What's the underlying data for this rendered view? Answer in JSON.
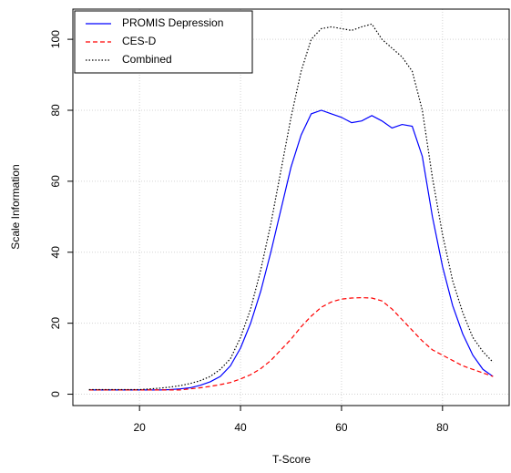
{
  "chart_data": {
    "type": "line",
    "x_label": "T-Score",
    "y_label": "Scale Information",
    "x": [
      10,
      12,
      14,
      16,
      18,
      20,
      22,
      24,
      26,
      28,
      30,
      32,
      34,
      36,
      38,
      40,
      42,
      44,
      46,
      48,
      50,
      52,
      54,
      56,
      58,
      60,
      62,
      64,
      66,
      68,
      70,
      72,
      74,
      76,
      78,
      80,
      82,
      84,
      86,
      88,
      90
    ],
    "series": [
      {
        "name": "PROMIS Depression",
        "color": "#0000ff",
        "dash": "solid",
        "values": [
          1.2,
          1.2,
          1.2,
          1.2,
          1.2,
          1.2,
          1.2,
          1.2,
          1.3,
          1.5,
          1.8,
          2.5,
          3.5,
          5,
          8,
          13,
          20,
          29,
          40,
          52,
          64,
          73,
          79,
          80,
          79,
          78,
          76.5,
          77,
          78.5,
          77,
          75,
          76,
          75.5,
          67,
          50,
          36,
          25,
          17,
          11,
          7,
          5
        ]
      },
      {
        "name": "CES-D",
        "color": "#ff0000",
        "dash": "dashed",
        "values": [
          1.2,
          1.2,
          1.2,
          1.2,
          1.2,
          1.2,
          1.2,
          1.2,
          1.2,
          1.2,
          1.5,
          1.8,
          2.2,
          2.7,
          3.3,
          4.3,
          5.5,
          7.2,
          9.5,
          12.5,
          15.5,
          19,
          22,
          24.5,
          26,
          26.8,
          27.1,
          27.2,
          27.1,
          26.3,
          24,
          21,
          18,
          15,
          12.5,
          11,
          9.5,
          8,
          7,
          6,
          5
        ]
      },
      {
        "name": "Combined",
        "color": "#000000",
        "dash": "dotted",
        "values": [
          1.3,
          1.3,
          1.3,
          1.3,
          1.3,
          1.3,
          1.5,
          1.7,
          2,
          2.4,
          3,
          3.8,
          5,
          7,
          10,
          16,
          24,
          35,
          48,
          63,
          78,
          91,
          100,
          103,
          103.5,
          103,
          102.5,
          103.5,
          104.3,
          100,
          97.5,
          95,
          91,
          80,
          61,
          45,
          32,
          23,
          16,
          12,
          9
        ]
      }
    ],
    "xlim": [
      6.8,
      93.2
    ],
    "xticks": [
      20,
      40,
      60,
      80
    ],
    "ylim": [
      -3.2,
      108.5
    ],
    "yticks": [
      0,
      20,
      40,
      60,
      80,
      100
    ],
    "grid": true,
    "legend": "top-left"
  }
}
